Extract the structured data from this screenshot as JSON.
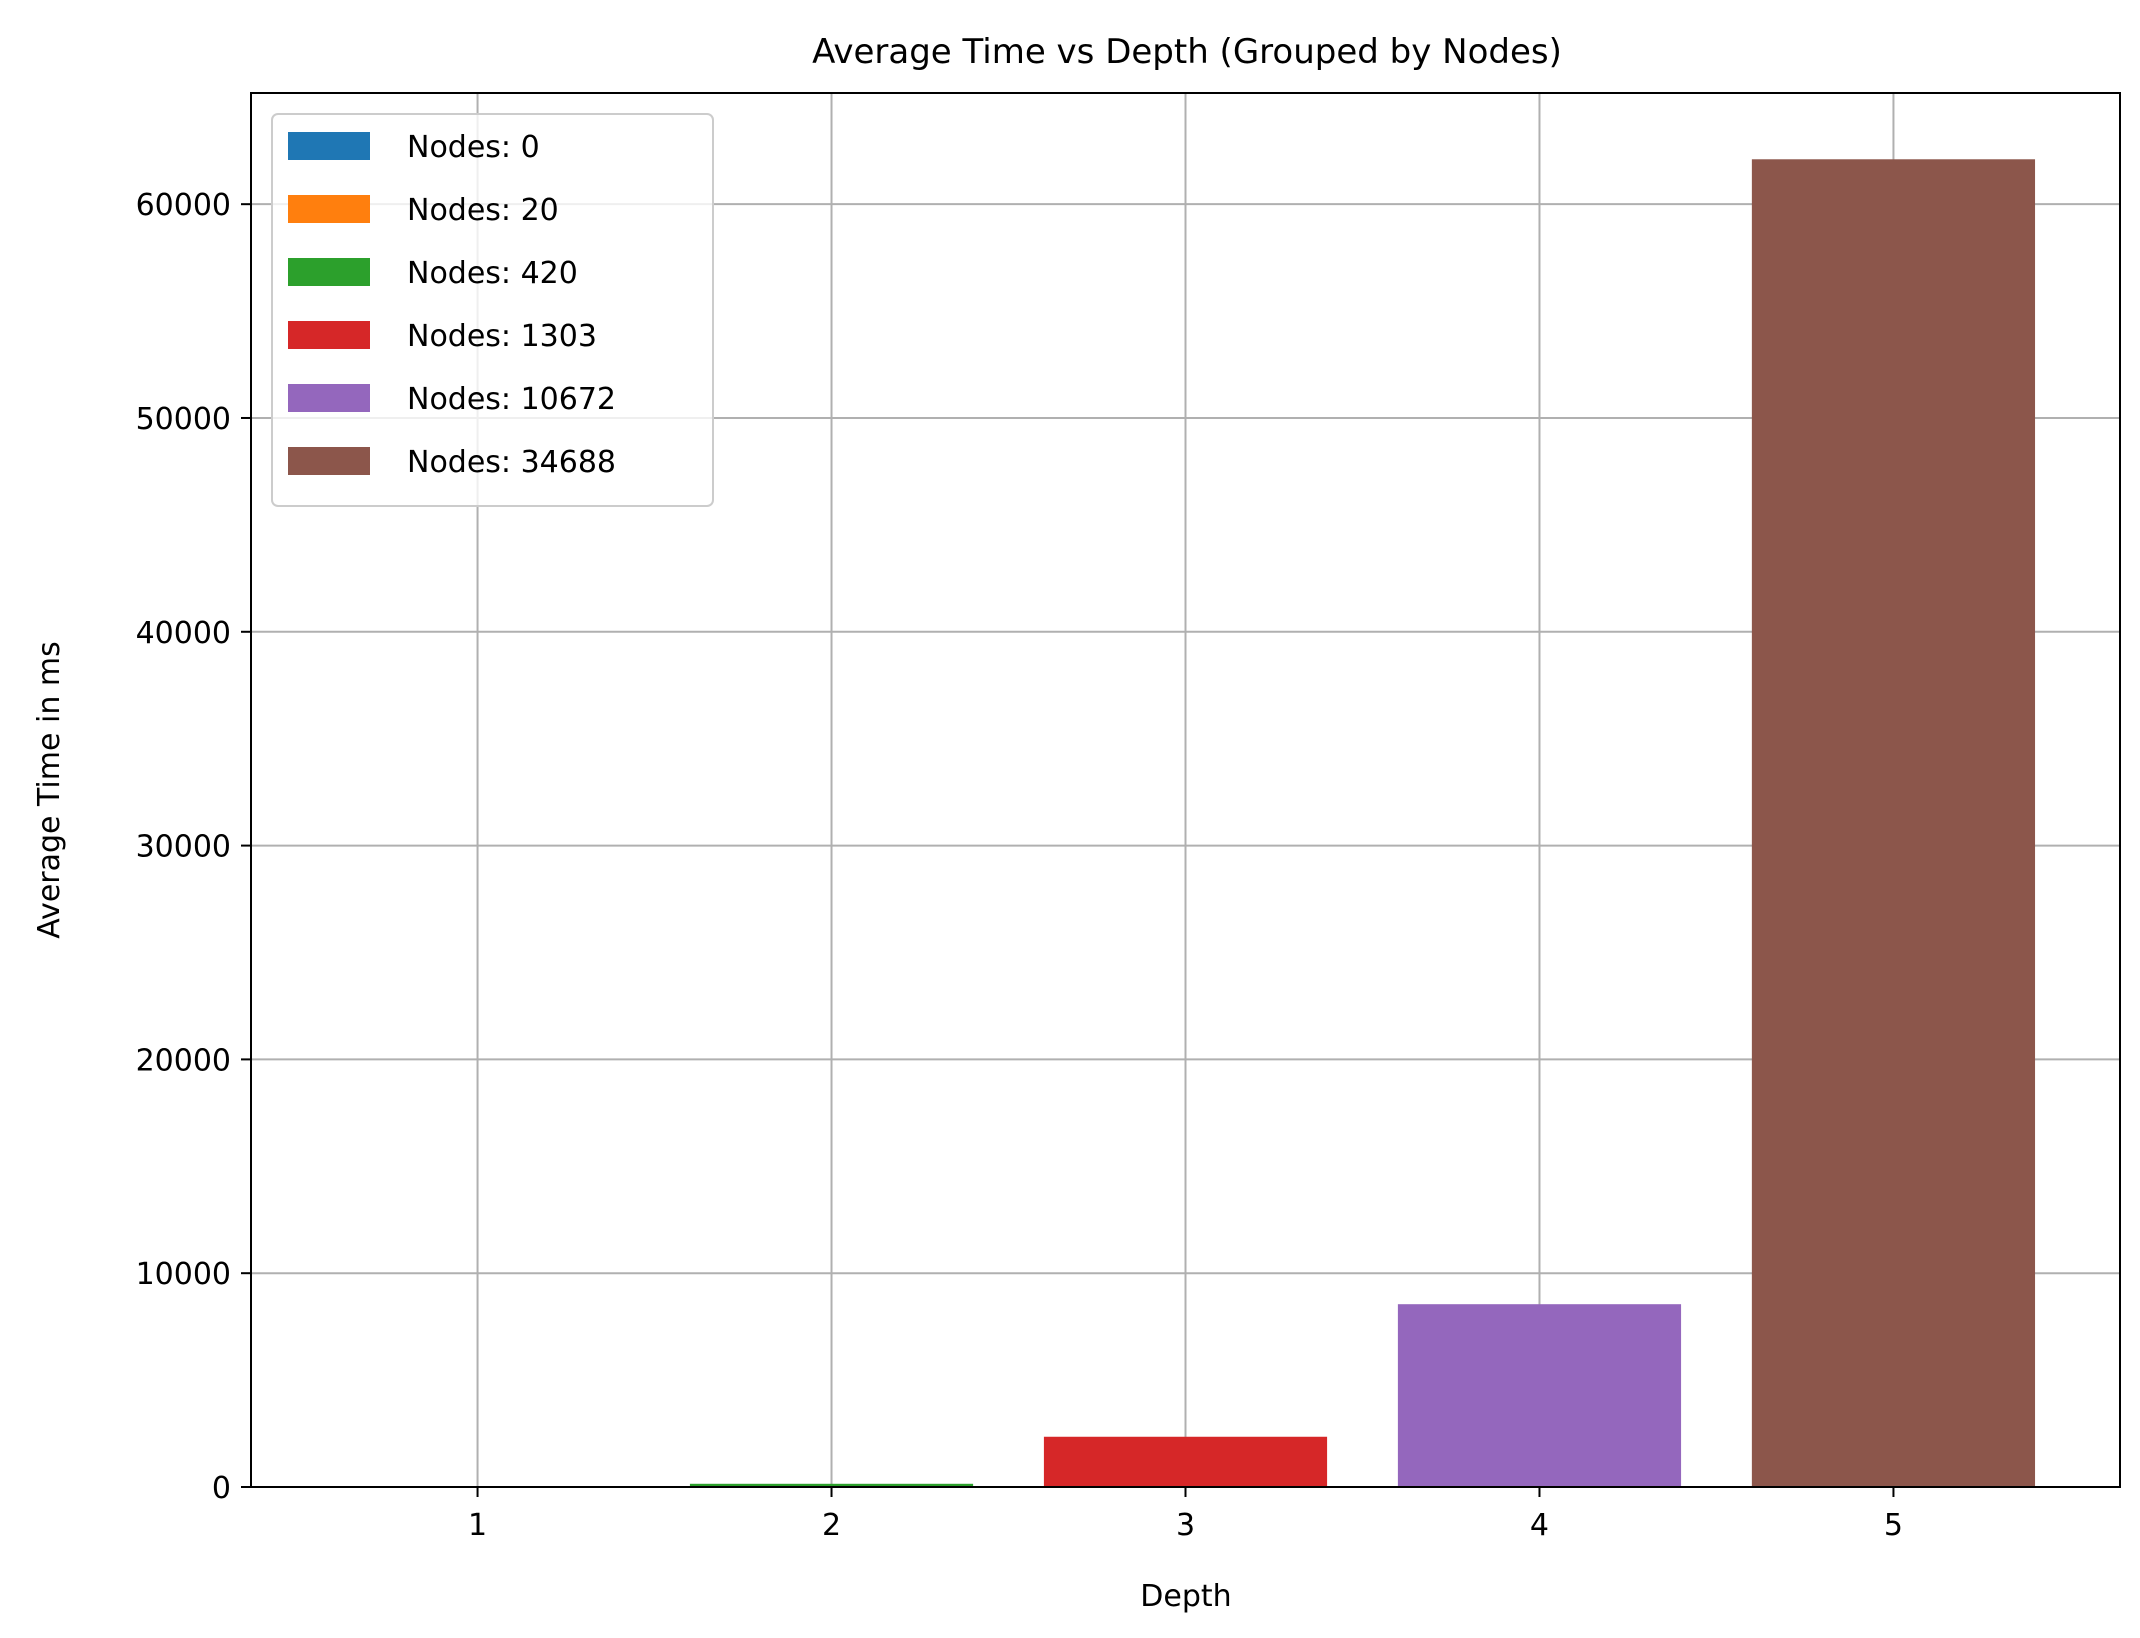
{
  "chart_data": {
    "type": "bar",
    "title": "Average Time vs Depth (Grouped by Nodes)",
    "xlabel": "Depth",
    "ylabel": "Average Time in ms",
    "categories": [
      "1",
      "2",
      "3",
      "4",
      "5"
    ],
    "x": [
      1,
      2,
      3,
      4,
      5
    ],
    "series": [
      {
        "name": "Nodes: 0",
        "x": 1,
        "value": 0,
        "color": "#1f77b4"
      },
      {
        "name": "Nodes: 20",
        "x": 1,
        "value": 20,
        "color": "#ff7f0e"
      },
      {
        "name": "Nodes: 420",
        "x": 2,
        "value": 150,
        "color": "#2ca02c"
      },
      {
        "name": "Nodes: 1303",
        "x": 3,
        "value": 2350,
        "color": "#d62728"
      },
      {
        "name": "Nodes: 10672",
        "x": 4,
        "value": 8550,
        "color": "#9467bd"
      },
      {
        "name": "Nodes: 34688",
        "x": 5,
        "value": 62100,
        "color": "#8c564b"
      }
    ],
    "ylim": [
      0,
      65200
    ],
    "xlim": [
      0.36,
      5.64
    ],
    "yticks": [
      0,
      10000,
      20000,
      30000,
      40000,
      50000,
      60000
    ],
    "ytick_labels": [
      "0",
      "10000",
      "20000",
      "30000",
      "40000",
      "50000",
      "60000"
    ],
    "xtick_labels": [
      "1",
      "2",
      "3",
      "4",
      "5"
    ],
    "grid": true,
    "legend_position": "upper-left"
  }
}
